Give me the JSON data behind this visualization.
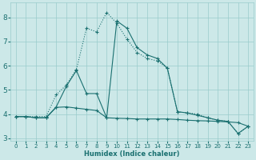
{
  "xlabel": "Humidex (Indice chaleur)",
  "bg_color": "#cce8e8",
  "grid_color": "#99cccc",
  "line_color": "#1a7070",
  "xlim": [
    -0.5,
    23.5
  ],
  "ylim": [
    2.9,
    8.6
  ],
  "xticks": [
    0,
    1,
    2,
    3,
    4,
    5,
    6,
    7,
    8,
    9,
    10,
    11,
    12,
    13,
    14,
    15,
    16,
    17,
    18,
    19,
    20,
    21,
    22,
    23
  ],
  "yticks": [
    3,
    4,
    5,
    6,
    7,
    8
  ],
  "series_dotted_x": [
    0,
    1,
    2,
    3,
    4,
    5,
    6,
    7,
    8,
    9,
    10,
    11,
    12,
    13,
    14,
    15,
    16,
    17,
    18,
    19,
    20,
    21,
    22,
    23
  ],
  "series_dotted_y": [
    3.9,
    3.9,
    3.9,
    3.9,
    4.8,
    5.2,
    5.85,
    7.55,
    7.4,
    8.2,
    7.75,
    7.1,
    6.55,
    6.3,
    6.2,
    5.9,
    4.1,
    4.05,
    4.0,
    3.85,
    3.75,
    3.7,
    3.2,
    3.5
  ],
  "series_solid_x": [
    0,
    1,
    2,
    3,
    4,
    5,
    6,
    7,
    8,
    9,
    10,
    11,
    12,
    13,
    14,
    15,
    16,
    17,
    18,
    19,
    20,
    21,
    22,
    23
  ],
  "series_solid_y": [
    3.9,
    3.9,
    3.85,
    3.85,
    4.3,
    5.15,
    5.8,
    4.85,
    4.85,
    3.85,
    7.85,
    7.55,
    6.75,
    6.45,
    6.3,
    5.9,
    4.1,
    4.05,
    3.95,
    3.85,
    3.75,
    3.7,
    3.2,
    3.5
  ],
  "series_flat_x": [
    0,
    1,
    2,
    3,
    4,
    5,
    6,
    7,
    8,
    9,
    10,
    11,
    12,
    13,
    14,
    15,
    16,
    17,
    18,
    19,
    20,
    21,
    22,
    23
  ],
  "series_flat_y": [
    3.9,
    3.9,
    3.85,
    3.85,
    4.28,
    4.3,
    4.25,
    4.2,
    4.15,
    3.85,
    3.83,
    3.82,
    3.8,
    3.8,
    3.8,
    3.8,
    3.78,
    3.75,
    3.73,
    3.72,
    3.7,
    3.68,
    3.65,
    3.5
  ]
}
